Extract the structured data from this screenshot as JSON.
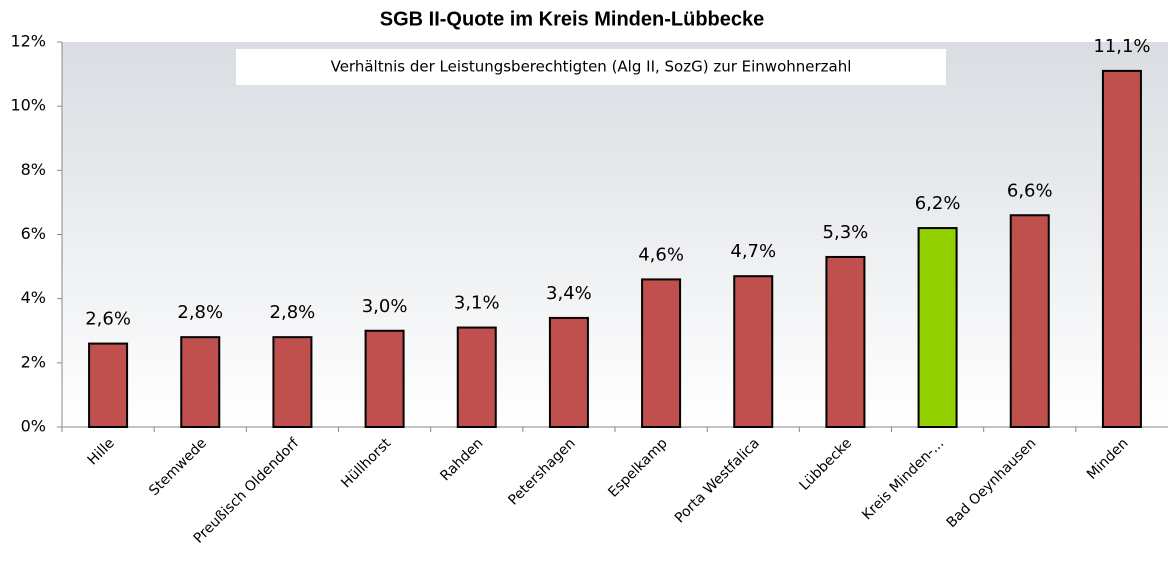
{
  "chart_data": {
    "type": "bar",
    "title": "SGB II-Quote im Kreis Minden-Lübbecke",
    "subtitle": "Verhältnis der Leistungsberechtigten (Alg II, SozG) zur Einwohnerzahl",
    "categories": [
      "Hille",
      "Stemwede",
      "Preußisch Oldendorf",
      "Hüllhorst",
      "Rahden",
      "Petershagen",
      "Espelkamp",
      "Porta Westfalica",
      "Lübbecke",
      "Kreis Minden-...",
      "Bad Oeynhausen",
      "Minden"
    ],
    "values": [
      2.6,
      2.8,
      2.8,
      3.0,
      3.1,
      3.4,
      4.6,
      4.7,
      5.3,
      6.2,
      6.6,
      11.1
    ],
    "value_labels": [
      "2,6%",
      "2,8%",
      "2,8%",
      "3,0%",
      "3,1%",
      "3,4%",
      "4,6%",
      "4,7%",
      "5,3%",
      "6,2%",
      "6,6%",
      "11,1%"
    ],
    "colors": [
      "#c0504d",
      "#c0504d",
      "#c0504d",
      "#c0504d",
      "#c0504d",
      "#c0504d",
      "#c0504d",
      "#c0504d",
      "#c0504d",
      "#92d000",
      "#c0504d",
      "#c0504d"
    ],
    "ylim": [
      0,
      12
    ],
    "yticks": [
      {
        "value": 0,
        "label": "0%"
      },
      {
        "value": 2,
        "label": "2%"
      },
      {
        "value": 4,
        "label": "4%"
      },
      {
        "value": 6,
        "label": "6%"
      },
      {
        "value": 8,
        "label": "8%"
      },
      {
        "value": 10,
        "label": "10%"
      },
      {
        "value": 12,
        "label": "12%"
      }
    ],
    "grid": false
  }
}
